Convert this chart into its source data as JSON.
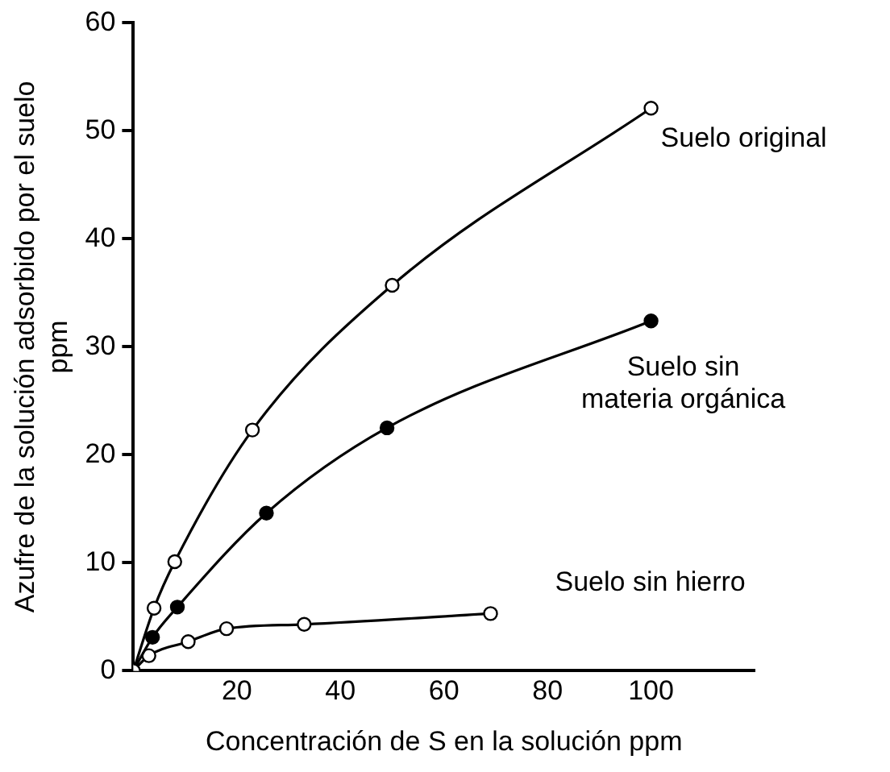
{
  "chart_data": {
    "type": "line",
    "xlabel": "Concentración de S en la solución ppm",
    "ylabel": "Azufre de la solución adsorbido por el suelo\nppm",
    "xlim": [
      0,
      120
    ],
    "xticks": [
      20,
      40,
      60,
      80,
      100
    ],
    "ylim": [
      0,
      60
    ],
    "yticks": [
      0,
      10,
      20,
      30,
      40,
      50,
      60
    ],
    "grid": false,
    "legend": false,
    "marker": "circle",
    "series": [
      {
        "name": "Suelo original",
        "color": "#ffffff",
        "x": [
          0,
          4,
          8,
          23,
          50,
          100
        ],
        "values": [
          0,
          5.8,
          10.1,
          22.3,
          35.7,
          52.1
        ]
      },
      {
        "name": "Suelo sin\nmateria orgánica",
        "color": "#000000",
        "x": [
          0,
          3.7,
          8.5,
          25.7,
          49,
          100
        ],
        "values": [
          0,
          3.1,
          5.9,
          14.6,
          22.5,
          32.4
        ]
      },
      {
        "name": "Suelo sin hierro",
        "color": "#ffffff",
        "x": [
          0,
          3,
          10.6,
          18,
          33,
          69
        ],
        "values": [
          0,
          1.4,
          2.7,
          3.9,
          4.3,
          5.3
        ]
      }
    ]
  }
}
